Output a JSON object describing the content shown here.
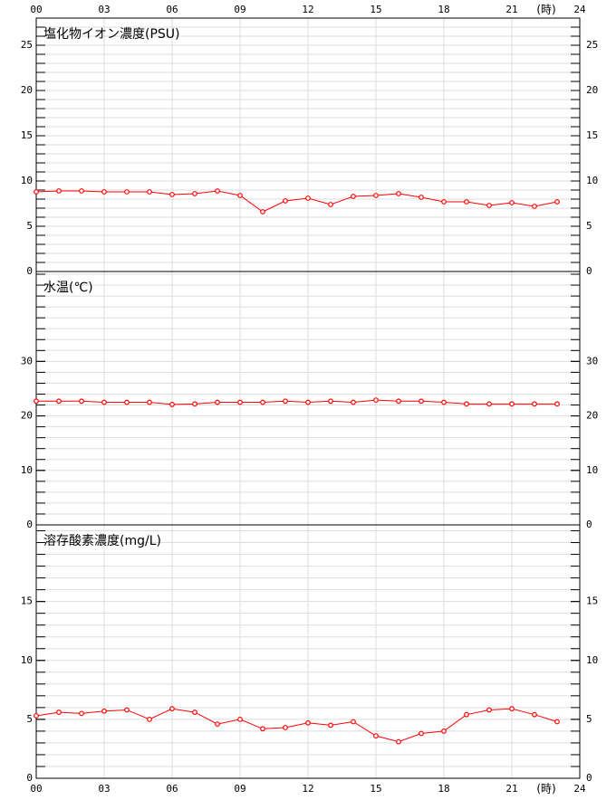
{
  "chart_data": [
    {
      "type": "line",
      "title": "塩化物イオン濃度(PSU)",
      "x_unit_label": "(時)",
      "xlim": [
        0,
        24
      ],
      "xticks": [
        {
          "value": 0,
          "label": "00"
        },
        {
          "value": 3,
          "label": "03"
        },
        {
          "value": 6,
          "label": "06"
        },
        {
          "value": 9,
          "label": "09"
        },
        12,
        15,
        18,
        21,
        24
      ],
      "x": [
        0,
        1,
        2,
        3,
        4,
        5,
        6,
        7,
        8,
        9,
        10,
        11,
        12,
        13,
        14,
        15,
        16,
        17,
        18,
        19,
        20,
        21,
        22,
        23
      ],
      "values": [
        8.8,
        8.9,
        8.9,
        8.8,
        8.8,
        8.8,
        8.5,
        8.6,
        8.9,
        8.4,
        6.6,
        7.8,
        8.1,
        7.4,
        8.3,
        8.4,
        8.6,
        8.2,
        7.7,
        7.7,
        7.3,
        7.6,
        7.2,
        7.7
      ],
      "color": "#ff0000",
      "ylim": [
        0,
        28
      ],
      "yticks": [
        0,
        5,
        10,
        15,
        20,
        25
      ],
      "minor_step": 1,
      "grid": true
    },
    {
      "type": "line",
      "title": "水温(℃)",
      "xlim": [
        0,
        24
      ],
      "x": [
        0,
        1,
        2,
        3,
        4,
        5,
        6,
        7,
        8,
        9,
        10,
        11,
        12,
        13,
        14,
        15,
        16,
        17,
        18,
        19,
        20,
        21,
        22,
        23
      ],
      "values": [
        22.7,
        22.7,
        22.7,
        22.5,
        22.5,
        22.5,
        22.1,
        22.2,
        22.5,
        22.5,
        22.5,
        22.7,
        22.5,
        22.7,
        22.5,
        22.9,
        22.7,
        22.7,
        22.5,
        22.2,
        22.2,
        22.2,
        22.2,
        22.2
      ],
      "color": "#ff0000",
      "ylim": [
        0,
        46.5
      ],
      "yticks": [
        0,
        10,
        20,
        30
      ],
      "minor_step": 2,
      "grid": true
    },
    {
      "type": "line",
      "title": "溶存酸素濃度(mg/L)",
      "x_unit_label": "(時)",
      "xlim": [
        0,
        24
      ],
      "xticks": [
        {
          "value": 0,
          "label": "00"
        },
        {
          "value": 3,
          "label": "03"
        },
        {
          "value": 6,
          "label": "06"
        },
        {
          "value": 9,
          "label": "09"
        },
        12,
        15,
        18,
        21,
        24
      ],
      "x": [
        0,
        1,
        2,
        3,
        4,
        5,
        6,
        7,
        8,
        9,
        10,
        11,
        12,
        13,
        14,
        15,
        16,
        17,
        18,
        19,
        20,
        21,
        22,
        23
      ],
      "values": [
        5.3,
        5.6,
        5.5,
        5.7,
        5.8,
        5.0,
        5.9,
        5.6,
        4.6,
        5.0,
        4.2,
        4.3,
        4.7,
        4.5,
        4.8,
        3.6,
        3.1,
        3.8,
        4.0,
        5.4,
        5.8,
        5.9,
        5.4,
        4.8
      ],
      "color": "#ff0000",
      "ylim": [
        0,
        21.5
      ],
      "yticks": [
        0,
        5,
        10,
        15
      ],
      "minor_step": 1,
      "grid": true
    }
  ]
}
